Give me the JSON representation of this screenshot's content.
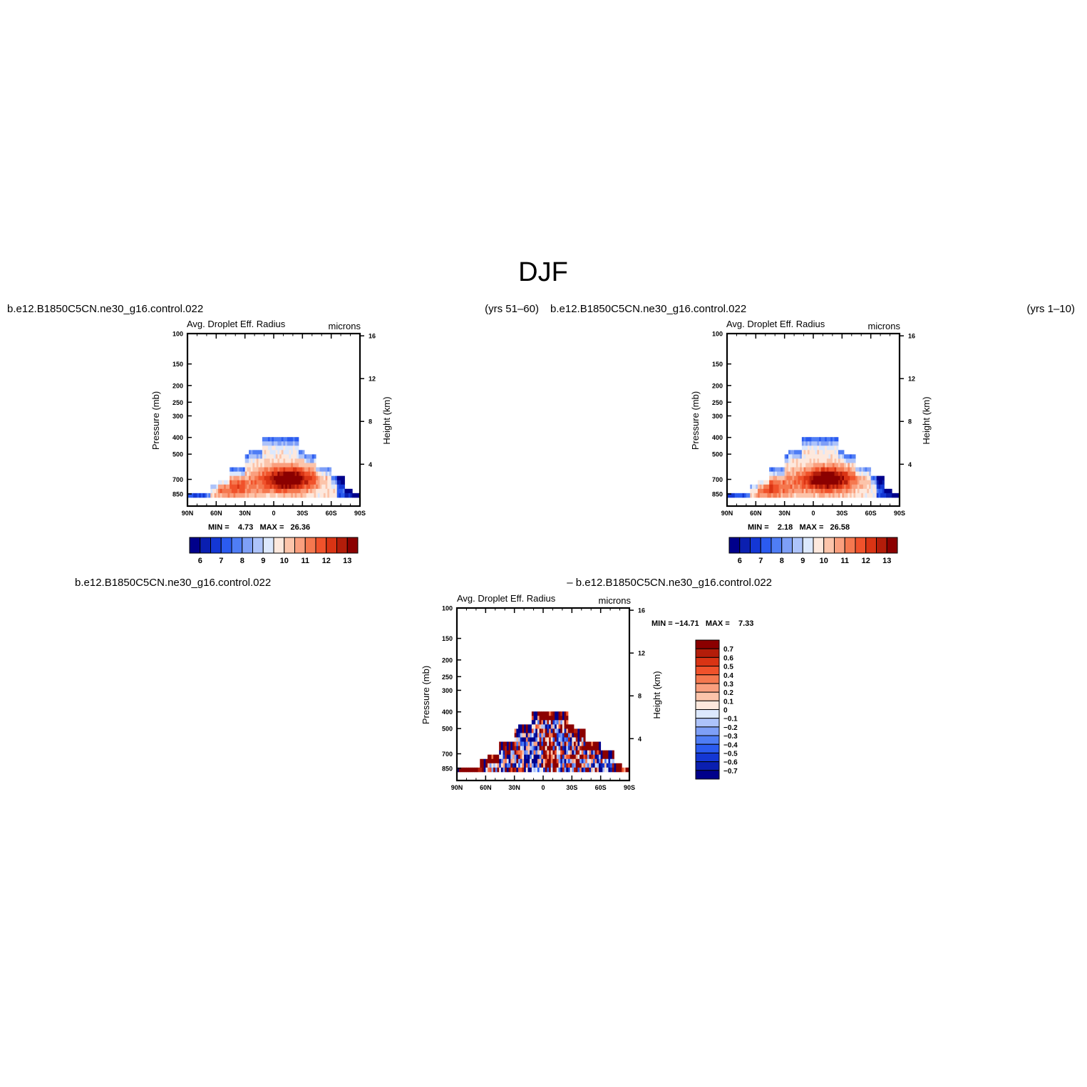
{
  "title": "DJF",
  "colors": {
    "blue_red": [
      "#00008b",
      "#0a1fb0",
      "#1437d4",
      "#2b5bf0",
      "#4f7df5",
      "#7e9ff7",
      "#adc3fa",
      "#dce8fd",
      "#fde8dd",
      "#fcc4aa",
      "#fa9f7e",
      "#f5784f",
      "#f0522b",
      "#d93414",
      "#b31d0a",
      "#8b0000"
    ]
  },
  "panels": [
    {
      "case_name": "b.e12.B1850C5CN.ne30_g16.control.022",
      "years": "(yrs 51–60)",
      "variable": "Avg. Droplet Eff. Radius",
      "units": "microns",
      "pressure_label": "Pressure (mb)",
      "height_label": "Height (km)",
      "minmax": "MIN =    4.73   MAX =   26.36",
      "colorbar_labels": [
        "6",
        "7",
        "8",
        "9",
        "10",
        "11",
        "12",
        "13"
      ]
    },
    {
      "case_name": "b.e12.B1850C5CN.ne30_g16.control.022",
      "years": "(yrs 1–10)",
      "variable": "Avg. Droplet Eff. Radius",
      "units": "microns",
      "pressure_label": "Pressure (mb)",
      "height_label": "Height (km)",
      "minmax": "MIN =    2.18   MAX =   26.58",
      "colorbar_labels": [
        "6",
        "7",
        "8",
        "9",
        "10",
        "11",
        "12",
        "13"
      ]
    },
    {
      "case_name_left": "b.e12.B1850C5CN.ne30_g16.control.022",
      "case_name_right": "– b.e12.B1850C5CN.ne30_g16.control.022",
      "variable": "Avg. Droplet Eff. Radius",
      "units": "microns",
      "pressure_label": "Pressure (mb)",
      "height_label": "Height (km)",
      "minmax": "MIN = −14.71   MAX =    7.33",
      "colorbar_labels": [
        "0.7",
        "0.6",
        "0.5",
        "0.4",
        "0.3",
        "0.2",
        "0.1",
        "0",
        "−0.1",
        "−0.2",
        "−0.3",
        "−0.4",
        "−0.5",
        "−0.6",
        "−0.7"
      ]
    }
  ],
  "chart_data": [
    {
      "type": "heatmap",
      "title": "Avg. Droplet Eff. Radius (yrs 51–60)",
      "x_ticks": [
        "90N",
        "60N",
        "30N",
        "0",
        "30S",
        "60S",
        "90S"
      ],
      "y_ticks_pressure": [
        "100",
        "150",
        "200",
        "250",
        "300",
        "400",
        "500",
        "700",
        "850"
      ],
      "y_ticks_height": [
        "16",
        "12",
        "8",
        "4"
      ],
      "units": "microns",
      "min": 4.73,
      "max": 26.36,
      "levels": [
        6,
        6.5,
        7,
        7.5,
        8,
        8.5,
        9,
        9.5,
        10,
        10.5,
        11,
        11.5,
        12,
        12.5,
        13
      ]
    },
    {
      "type": "heatmap",
      "title": "Avg. Droplet Eff. Radius (yrs 1–10)",
      "x_ticks": [
        "90N",
        "60N",
        "30N",
        "0",
        "30S",
        "60S",
        "90S"
      ],
      "y_ticks_pressure": [
        "100",
        "150",
        "200",
        "250",
        "300",
        "400",
        "500",
        "700",
        "850"
      ],
      "y_ticks_height": [
        "16",
        "12",
        "8",
        "4"
      ],
      "units": "microns",
      "min": 2.18,
      "max": 26.58,
      "levels": [
        6,
        6.5,
        7,
        7.5,
        8,
        8.5,
        9,
        9.5,
        10,
        10.5,
        11,
        11.5,
        12,
        12.5,
        13
      ]
    },
    {
      "type": "heatmap",
      "title": "Avg. Droplet Eff. Radius difference",
      "x_ticks": [
        "90N",
        "60N",
        "30N",
        "0",
        "30S",
        "60S",
        "90S"
      ],
      "y_ticks_pressure": [
        "100",
        "150",
        "200",
        "250",
        "300",
        "400",
        "500",
        "700",
        "850"
      ],
      "y_ticks_height": [
        "16",
        "12",
        "8",
        "4"
      ],
      "units": "microns",
      "min": -14.71,
      "max": 7.33,
      "levels": [
        -0.7,
        -0.6,
        -0.5,
        -0.4,
        -0.3,
        -0.2,
        -0.1,
        0,
        0.1,
        0.2,
        0.3,
        0.4,
        0.5,
        0.6,
        0.7
      ]
    }
  ]
}
